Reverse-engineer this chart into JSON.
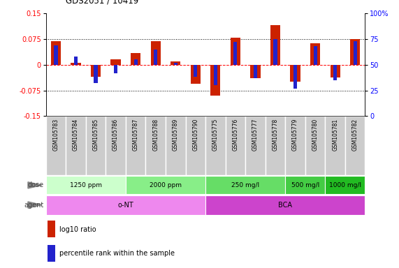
{
  "title": "GDS2051 / 10419",
  "samples": [
    "GSM105783",
    "GSM105784",
    "GSM105785",
    "GSM105786",
    "GSM105787",
    "GSM105788",
    "GSM105789",
    "GSM105790",
    "GSM105775",
    "GSM105776",
    "GSM105777",
    "GSM105778",
    "GSM105779",
    "GSM105780",
    "GSM105781",
    "GSM105782"
  ],
  "log10_ratio": [
    0.068,
    0.005,
    -0.035,
    0.015,
    0.035,
    0.068,
    0.01,
    -0.055,
    -0.09,
    0.08,
    -0.04,
    0.115,
    -0.05,
    0.062,
    -0.038,
    0.075
  ],
  "percentile": [
    69,
    58,
    32,
    42,
    55,
    65,
    52,
    38,
    30,
    72,
    37,
    75,
    27,
    68,
    35,
    73
  ],
  "ylim": [
    -0.15,
    0.15
  ],
  "yticks_left": [
    -0.15,
    -0.075,
    0,
    0.075,
    0.15
  ],
  "yticks_right": [
    0,
    25,
    50,
    75,
    100
  ],
  "bar_color_red": "#cc2200",
  "bar_color_blue": "#2222cc",
  "dose_groups": [
    {
      "label": "1250 ppm",
      "start": 0,
      "end": 4,
      "color": "#ccffcc"
    },
    {
      "label": "2000 ppm",
      "start": 4,
      "end": 8,
      "color": "#88ee88"
    },
    {
      "label": "250 mg/l",
      "start": 8,
      "end": 12,
      "color": "#66dd66"
    },
    {
      "label": "500 mg/l",
      "start": 12,
      "end": 14,
      "color": "#44cc44"
    },
    {
      "label": "1000 mg/l",
      "start": 14,
      "end": 16,
      "color": "#22bb22"
    }
  ],
  "agent_groups": [
    {
      "label": "o-NT",
      "start": 0,
      "end": 8,
      "color": "#ee88ee"
    },
    {
      "label": "BCA",
      "start": 8,
      "end": 16,
      "color": "#cc44cc"
    }
  ],
  "bg_color": "#ffffff",
  "sample_bg_color": "#cccccc",
  "sample_border_color": "#ffffff",
  "legend_red_label": "log10 ratio",
  "legend_blue_label": "percentile rank within the sample"
}
